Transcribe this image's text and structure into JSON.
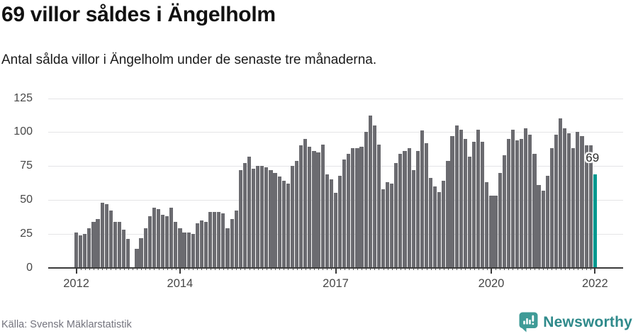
{
  "header": {
    "title": "69 villor såldes i Ängelholm",
    "subtitle": "Antal sålda villor i Ängelholm under de senaste tre månaderna."
  },
  "footer": {
    "source": "Källa: Svensk Mäklarstatistik",
    "brand": "Newsworthy"
  },
  "chart_data": {
    "type": "bar",
    "title": "69 villor såldes i Ängelholm",
    "subtitle": "Antal sålda villor i Ängelholm under de senaste tre månaderna.",
    "x_unit": "month",
    "x_range": [
      "2012-01",
      "2022-01"
    ],
    "ylim": [
      0,
      125
    ],
    "yticks": [
      0,
      25,
      50,
      75,
      100,
      125
    ],
    "xticks": [
      {
        "label": "2012",
        "month_index": 0
      },
      {
        "label": "2014",
        "month_index": 24
      },
      {
        "label": "2017",
        "month_index": 60
      },
      {
        "label": "2020",
        "month_index": 96
      },
      {
        "label": "2022",
        "month_index": 120
      }
    ],
    "grid": true,
    "bar_color": "#6b6b70",
    "highlight": {
      "month_index": 120,
      "value": 69,
      "label": "69",
      "color": "#00988f"
    },
    "values": [
      26,
      24,
      25,
      29,
      34,
      36,
      48,
      47,
      42,
      34,
      34,
      28,
      21,
      0,
      14,
      22,
      29,
      38,
      44,
      43,
      39,
      38,
      44,
      34,
      29,
      26,
      26,
      25,
      33,
      35,
      34,
      41,
      41,
      41,
      40,
      29,
      36,
      42,
      72,
      77,
      82,
      73,
      75,
      75,
      74,
      72,
      70,
      67,
      64,
      62,
      75,
      79,
      90,
      95,
      89,
      86,
      85,
      91,
      69,
      65,
      55,
      68,
      80,
      84,
      88,
      88,
      89,
      100,
      112,
      105,
      91,
      58,
      63,
      62,
      77,
      84,
      86,
      88,
      72,
      86,
      101,
      92,
      66,
      60,
      56,
      64,
      79,
      97,
      105,
      102,
      95,
      82,
      93,
      102,
      93,
      63,
      53,
      53,
      70,
      83,
      95,
      102,
      94,
      95,
      103,
      98,
      84,
      61,
      57,
      68,
      88,
      98,
      110,
      103,
      99,
      88,
      100,
      97,
      90,
      90,
      69
    ]
  }
}
